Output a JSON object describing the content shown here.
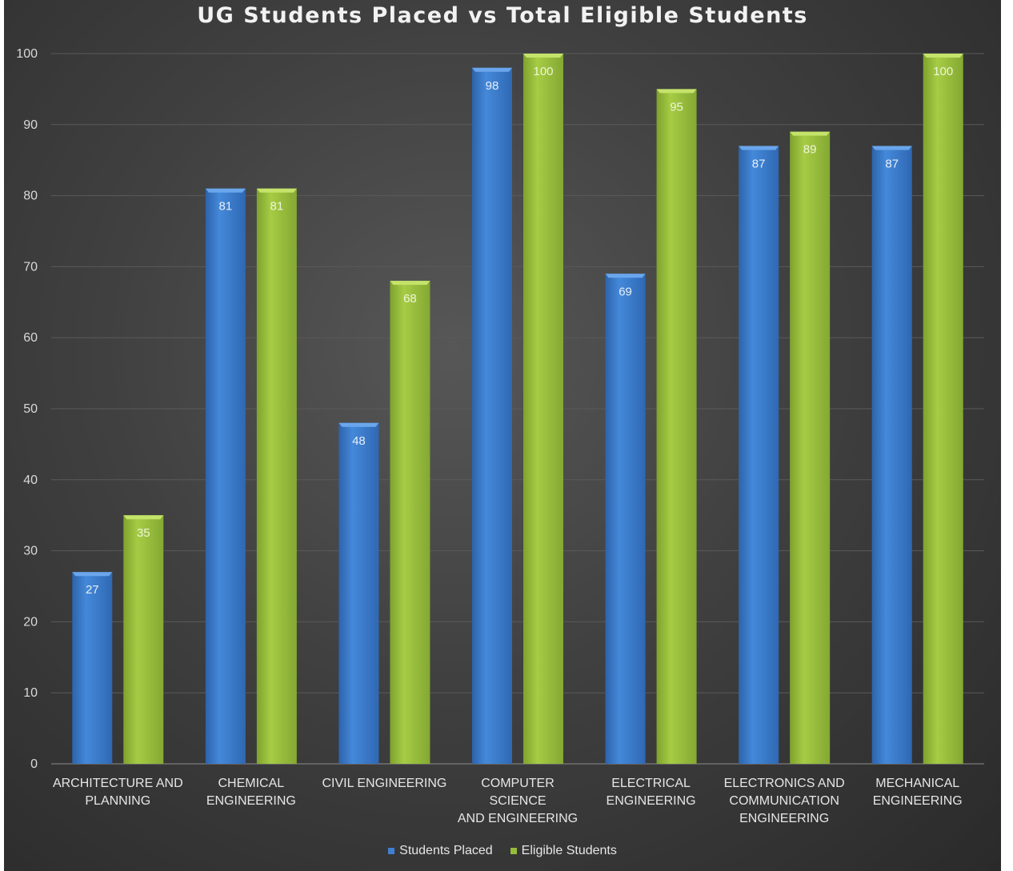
{
  "chart_data": {
    "type": "bar",
    "title": "UG Students Placed vs Total Eligible Students",
    "categories": [
      "ARCHITECTURE AND\nPLANNING",
      "CHEMICAL\nENGINEERING",
      "CIVIL ENGINEERING",
      "COMPUTER SCIENCE\nAND ENGINEERING",
      "ELECTRICAL\nENGINEERING",
      "ELECTRONICS AND\nCOMMUNICATION\nENGINEERING",
      "MECHANICAL\nENGINEERING"
    ],
    "series": [
      {
        "name": "Students Placed",
        "values": [
          27,
          81,
          48,
          98,
          69,
          87,
          87
        ],
        "color": "#3f7fcf"
      },
      {
        "name": "Eligible Students",
        "values": [
          35,
          81,
          68,
          100,
          95,
          89,
          100
        ],
        "color": "#96bd3a"
      }
    ],
    "ylim": [
      0,
      100
    ],
    "yticks": [
      0,
      10,
      20,
      30,
      40,
      50,
      60,
      70,
      80,
      90,
      100
    ],
    "grid": true,
    "legend": "bottom-center",
    "background": "#404040"
  }
}
